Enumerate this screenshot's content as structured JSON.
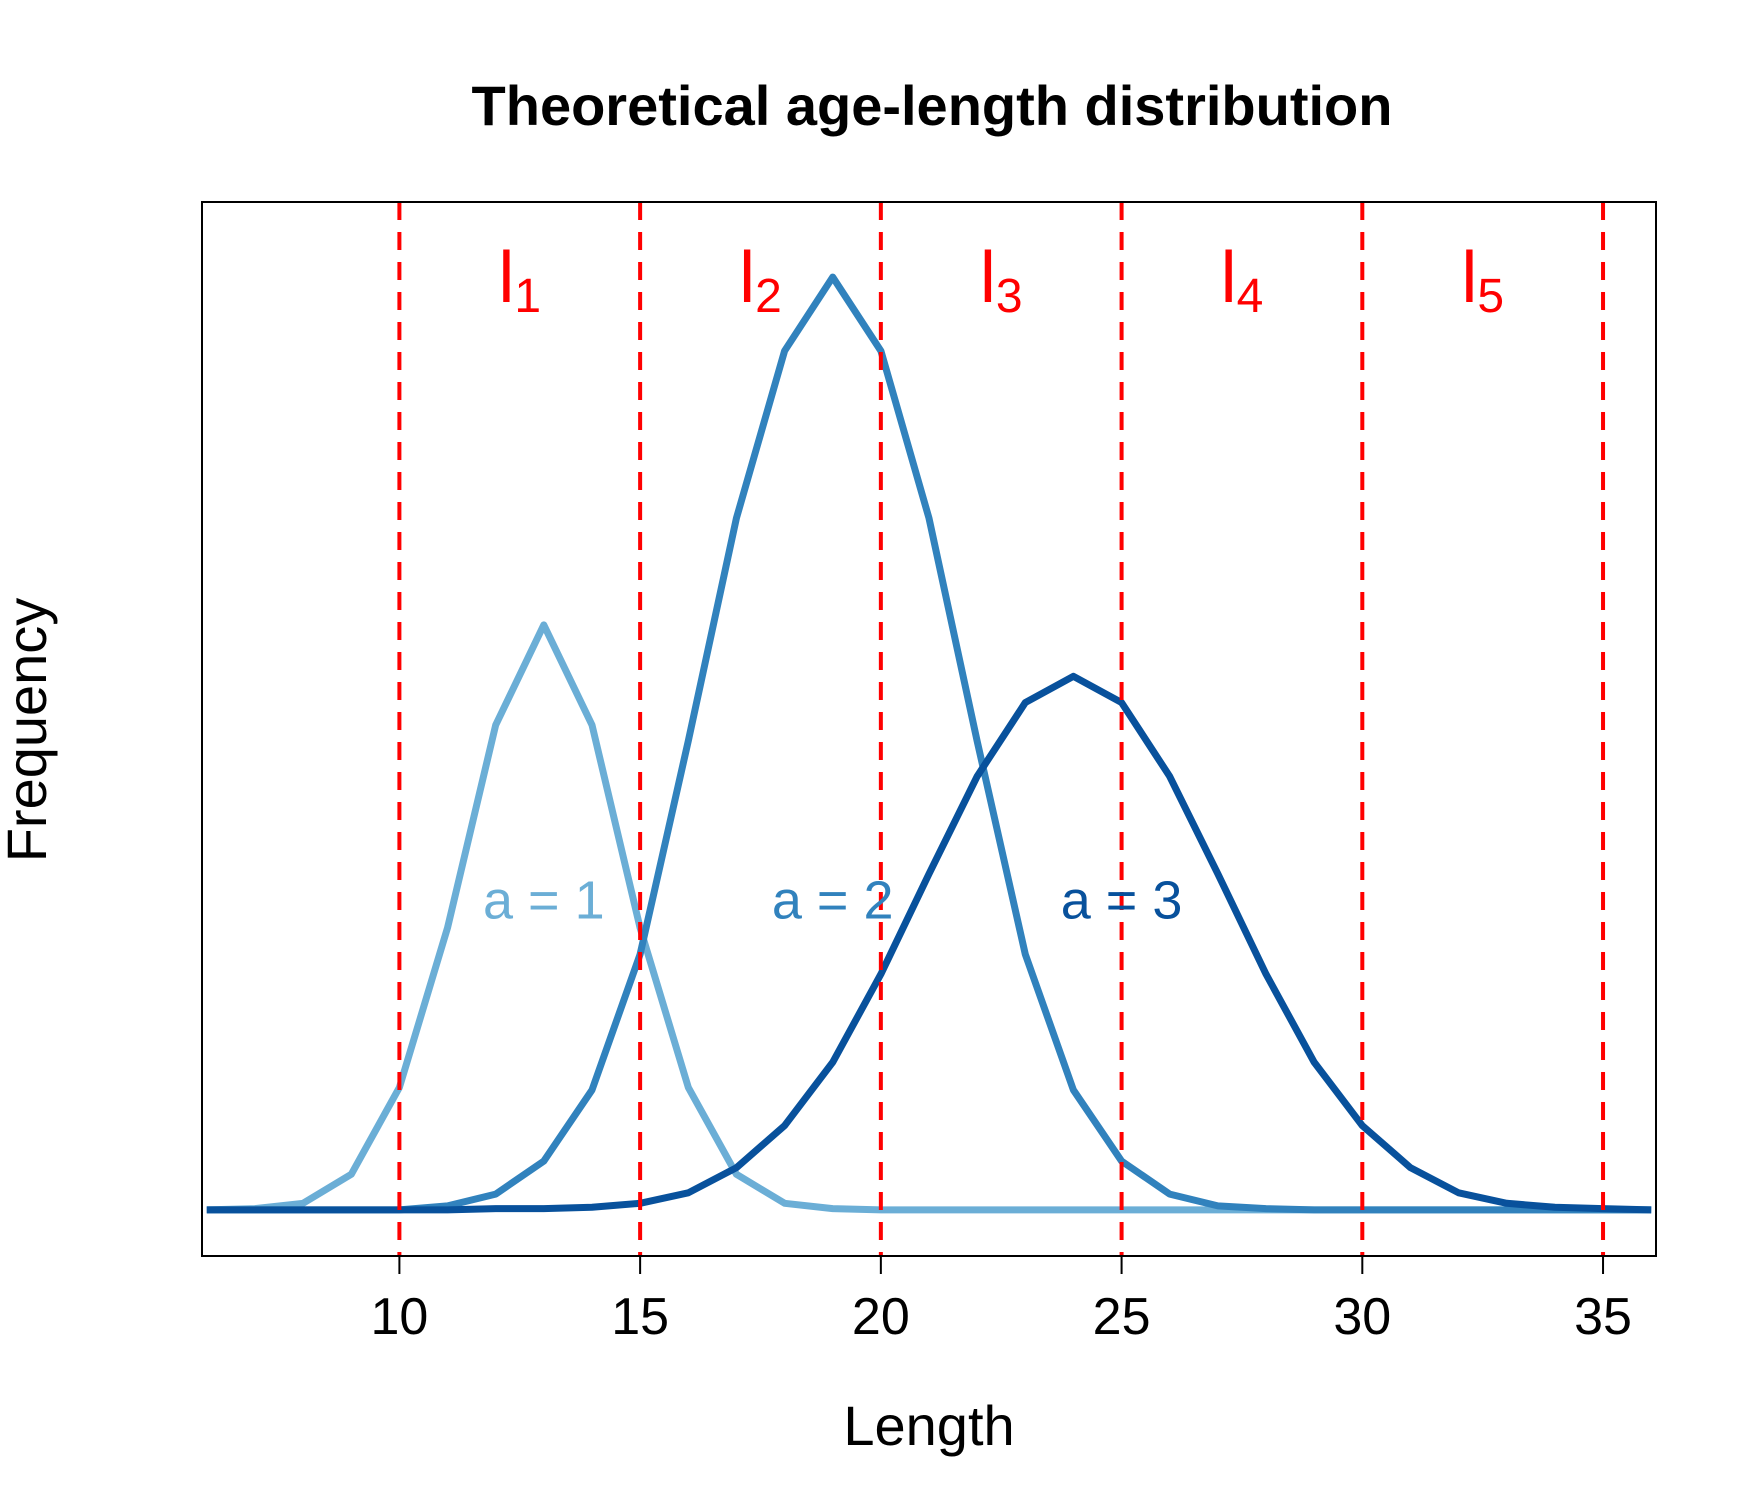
{
  "chart_data": {
    "type": "line",
    "title": "Theoretical age-length distribution",
    "xlabel": "Length",
    "ylabel": "Frequency",
    "xlim": [
      5.9,
      36.1
    ],
    "ylim": [
      -0.0035,
      0.0765
    ],
    "x_ticks": [
      10,
      15,
      20,
      25,
      30,
      35
    ],
    "y_ticks_shown": false,
    "grid": false,
    "legend": "none",
    "series": [
      {
        "label": "a = 1",
        "label_position": [
          13,
          0.0235
        ],
        "color": "#6BAED6",
        "x": [
          6,
          7,
          8,
          9,
          10,
          11,
          12,
          13,
          14,
          15,
          16,
          17,
          18,
          19,
          20,
          21,
          22,
          23,
          24,
          25,
          26,
          27,
          28,
          29,
          30,
          31,
          32,
          33,
          34,
          35,
          36
        ],
        "y": [
          0.0,
          0.0001,
          0.0005,
          0.0027,
          0.0093,
          0.0214,
          0.0368,
          0.0444,
          0.0368,
          0.0214,
          0.0093,
          0.0027,
          0.0005,
          0.0001,
          0.0,
          0.0,
          0.0,
          0.0,
          0.0,
          0.0,
          0.0,
          0.0,
          0.0,
          0.0,
          0.0,
          0.0,
          0.0,
          0.0,
          0.0,
          0.0,
          0.0
        ]
      },
      {
        "label": "a = 2",
        "label_position": [
          19,
          0.0235
        ],
        "color": "#3182BD",
        "x": [
          6,
          7,
          8,
          9,
          10,
          11,
          12,
          13,
          14,
          15,
          16,
          17,
          18,
          19,
          20,
          21,
          22,
          23,
          24,
          25,
          26,
          27,
          28,
          29,
          30,
          31,
          32,
          33,
          34,
          35,
          36
        ],
        "y": [
          0.0,
          0.0,
          0.0,
          0.0,
          0.0,
          0.0003,
          0.0012,
          0.0037,
          0.0091,
          0.0194,
          0.0356,
          0.0525,
          0.0652,
          0.0708,
          0.0652,
          0.0525,
          0.0356,
          0.0194,
          0.0091,
          0.0037,
          0.0012,
          0.0003,
          0.0001,
          0.0,
          0.0,
          0.0,
          0.0,
          0.0,
          0.0,
          0.0,
          0.0
        ]
      },
      {
        "label": "a = 3",
        "label_position": [
          25,
          0.0235
        ],
        "color": "#08519C",
        "x": [
          6,
          7,
          8,
          9,
          10,
          11,
          12,
          13,
          14,
          15,
          16,
          17,
          18,
          19,
          20,
          21,
          22,
          23,
          24,
          25,
          26,
          27,
          28,
          29,
          30,
          31,
          32,
          33,
          34,
          35,
          36
        ],
        "y": [
          0.0,
          0.0,
          0.0,
          0.0,
          0.0,
          0.0,
          0.0001,
          0.0001,
          0.0002,
          0.0005,
          0.0013,
          0.0032,
          0.0064,
          0.0112,
          0.0179,
          0.0255,
          0.0329,
          0.0385,
          0.0405,
          0.0385,
          0.0329,
          0.0255,
          0.0179,
          0.0112,
          0.0064,
          0.0032,
          0.0013,
          0.0005,
          0.0002,
          0.0001,
          0.0
        ]
      }
    ],
    "vlines": {
      "x": [
        10,
        15,
        20,
        25,
        30,
        35
      ],
      "color": "#FF0000",
      "style": "dashed"
    },
    "interval_labels": [
      {
        "main": "l",
        "sub": "1",
        "x": 12.5
      },
      {
        "main": "l",
        "sub": "2",
        "x": 17.5
      },
      {
        "main": "l",
        "sub": "3",
        "x": 22.5
      },
      {
        "main": "l",
        "sub": "4",
        "x": 27.5
      },
      {
        "main": "l",
        "sub": "5",
        "x": 32.5
      }
    ],
    "interval_label_color": "#FF0000"
  }
}
